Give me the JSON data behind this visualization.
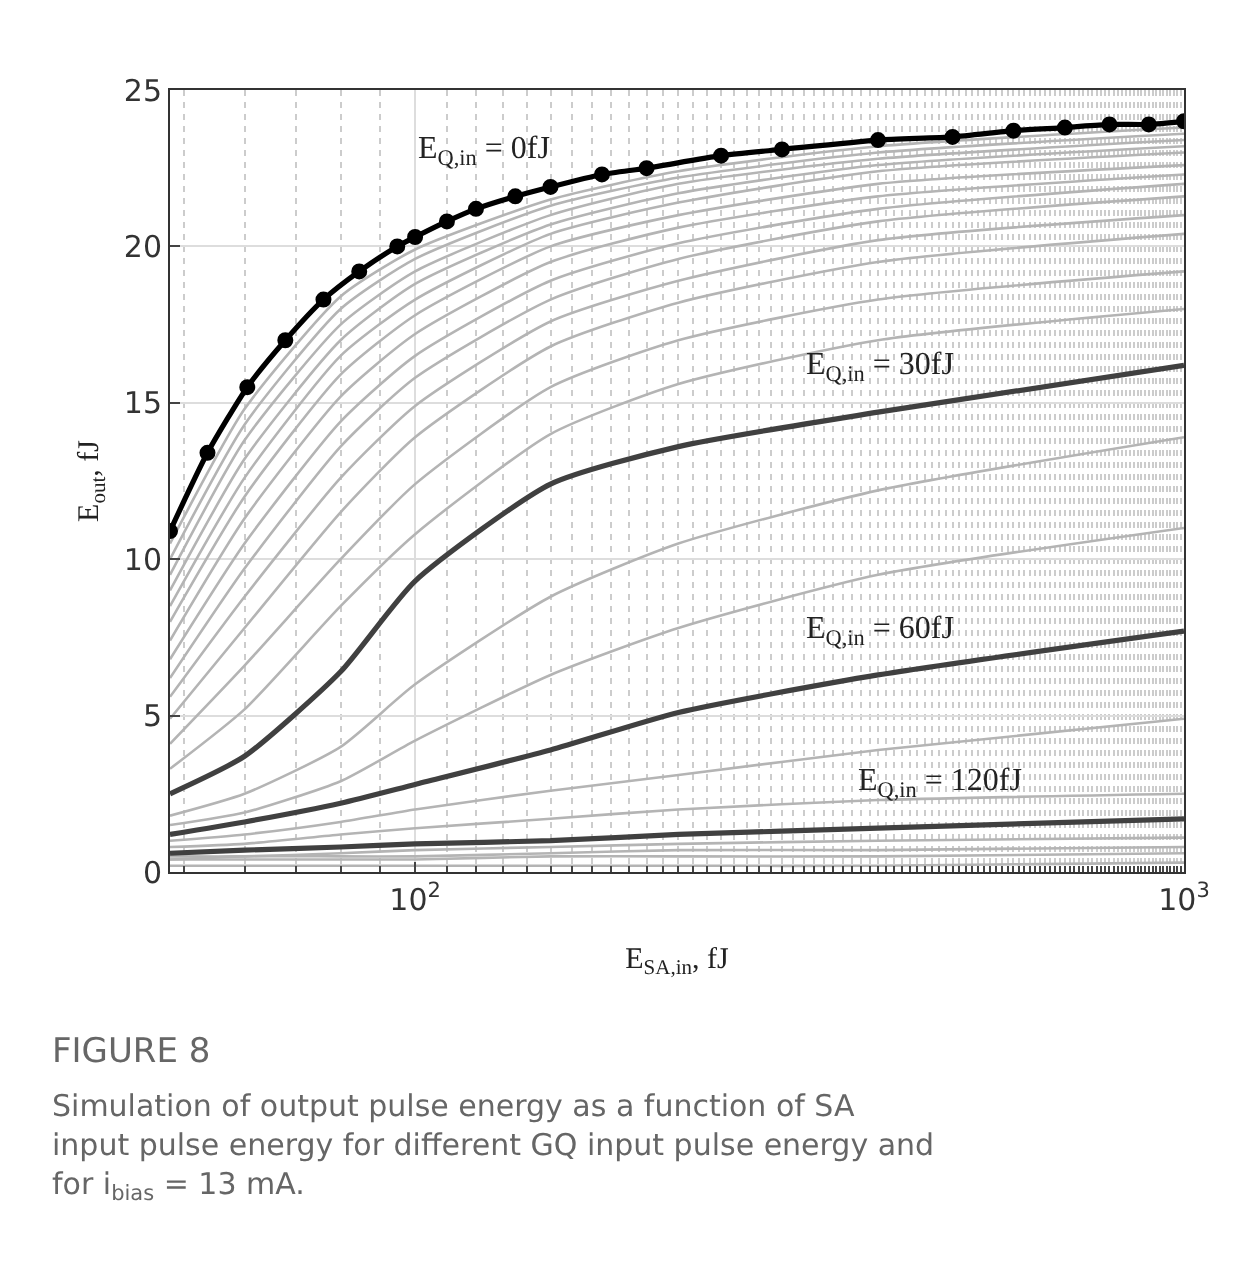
{
  "chart_data": {
    "type": "line",
    "xlabel": "E$_{SA,in}$, fJ",
    "ylabel": "E$_{out}$, fJ",
    "log": "x",
    "grid": true,
    "legend": false,
    "x": [
      48,
      60,
      80,
      100,
      150,
      220,
      400,
      1000
    ],
    "xlim": [
      48,
      1000
    ],
    "xticks": [
      {
        "value": 100,
        "label": "10$^{2}$"
      },
      {
        "value": 1000,
        "label": "10$^{3}$"
      }
    ],
    "ylim": [
      0,
      25
    ],
    "yticks": [
      0,
      5,
      10,
      15,
      20,
      25
    ],
    "series": [
      {
        "color": "#b4b4b4",
        "values": [
          10.5,
          14.8,
          18.4,
          19.9,
          21.5,
          22.4,
          23.2,
          23.8
        ]
      },
      {
        "color": "#b4b4b4",
        "values": [
          10.0,
          14.3,
          18.0,
          19.6,
          21.3,
          22.2,
          23.0,
          23.6
        ]
      },
      {
        "color": "#b4b4b4",
        "values": [
          9.5,
          13.8,
          17.5,
          19.2,
          21.0,
          22.0,
          22.8,
          23.4
        ]
      },
      {
        "color": "#b4b4b4",
        "values": [
          9.0,
          13.2,
          17.0,
          18.8,
          20.7,
          21.7,
          22.6,
          23.2
        ]
      },
      {
        "color": "#b4b4b4",
        "values": [
          8.5,
          12.6,
          16.5,
          18.3,
          20.4,
          21.4,
          22.4,
          23.0
        ]
      },
      {
        "color": "#b4b4b4",
        "values": [
          8.0,
          12.0,
          15.9,
          17.8,
          20.0,
          21.0,
          22.0,
          22.6
        ]
      },
      {
        "color": "#b4b4b4",
        "values": [
          7.4,
          11.3,
          15.2,
          17.2,
          19.5,
          20.6,
          21.6,
          22.3
        ]
      },
      {
        "color": "#b4b4b4",
        "values": [
          6.8,
          10.5,
          14.4,
          16.5,
          18.9,
          20.1,
          21.2,
          22.0
        ]
      },
      {
        "color": "#b4b4b4",
        "values": [
          6.2,
          9.7,
          13.6,
          15.8,
          18.3,
          19.6,
          20.8,
          21.6
        ]
      },
      {
        "color": "#b4b4b4",
        "values": [
          5.6,
          8.8,
          12.6,
          14.9,
          17.6,
          18.9,
          20.2,
          21.0
        ]
      },
      {
        "color": "#b4b4b4",
        "values": [
          4.9,
          7.8,
          11.5,
          13.9,
          16.8,
          18.2,
          19.5,
          20.4
        ]
      },
      {
        "color": "#b4b4b4",
        "values": [
          4.1,
          6.6,
          10.0,
          12.4,
          15.5,
          17.0,
          18.3,
          19.2
        ]
      },
      {
        "color": "#b4b4b4",
        "values": [
          3.3,
          5.2,
          8.5,
          10.8,
          14.0,
          15.6,
          17.0,
          18.0
        ]
      },
      {
        "color": "#b4b4b4",
        "values": [
          1.8,
          2.5,
          4.0,
          6.0,
          8.8,
          10.5,
          12.2,
          13.9
        ]
      },
      {
        "color": "#b4b4b4",
        "values": [
          1.5,
          1.9,
          2.9,
          4.2,
          6.3,
          7.8,
          9.5,
          11.0
        ]
      },
      {
        "color": "#b4b4b4",
        "values": [
          1.0,
          1.2,
          1.6,
          2.0,
          2.6,
          3.1,
          3.9,
          4.9
        ]
      },
      {
        "color": "#b4b4b4",
        "values": [
          0.8,
          0.9,
          1.2,
          1.4,
          1.7,
          2.0,
          2.3,
          2.5
        ]
      },
      {
        "color": "#b4b4b4",
        "values": [
          0.5,
          0.5,
          0.6,
          0.7,
          0.8,
          0.9,
          1.0,
          1.1
        ]
      },
      {
        "color": "#b4b4b4",
        "values": [
          0.4,
          0.5,
          0.5,
          0.5,
          0.6,
          0.7,
          0.7,
          0.8
        ]
      },
      {
        "color": "#b4b4b4",
        "values": [
          0.4,
          0.4,
          0.4,
          0.4,
          0.5,
          0.5,
          0.5,
          0.6
        ]
      },
      {
        "color": "#b4b4b4",
        "values": [
          0.2,
          0.2,
          0.2,
          0.2,
          0.2,
          0.2,
          0.2,
          0.3
        ]
      },
      {
        "name": "E$_{Q,in}$ = 30fJ",
        "color": "#404040",
        "values": [
          2.5,
          3.7,
          6.4,
          9.3,
          12.4,
          13.6,
          14.7,
          16.2
        ]
      },
      {
        "name": "E$_{Q,in}$ = 60fJ",
        "color": "#404040",
        "values": [
          1.2,
          1.6,
          2.2,
          2.8,
          3.9,
          5.1,
          6.3,
          7.7
        ]
      },
      {
        "name": "E$_{Q,in}$ = 120fJ",
        "color": "#404040",
        "values": [
          0.6,
          0.7,
          0.8,
          0.9,
          1.0,
          1.2,
          1.4,
          1.7
        ]
      },
      {
        "name": "E$_{Q,in}$ = 0fJ",
        "color": "#000000",
        "marker": "circle",
        "x": [
          48,
          53.7,
          60.5,
          67.8,
          76,
          84.6,
          94.8,
          100,
          110,
          120,
          135,
          150,
          175,
          200,
          250,
          300,
          400,
          500,
          600,
          700,
          800,
          900,
          1000
        ],
        "values": [
          10.9,
          13.4,
          15.5,
          17.0,
          18.3,
          19.2,
          20.0,
          20.3,
          20.8,
          21.2,
          21.6,
          21.9,
          22.3,
          22.5,
          22.9,
          23.1,
          23.4,
          23.5,
          23.7,
          23.8,
          23.9,
          23.9,
          24.0
        ]
      }
    ],
    "annotations": [
      "FIGURE 8",
      "Simulation of output pulse energy as a function of SA input pulse energy for different GQ input pulse energy and for i$_{bias}$ = 13 mA."
    ]
  }
}
